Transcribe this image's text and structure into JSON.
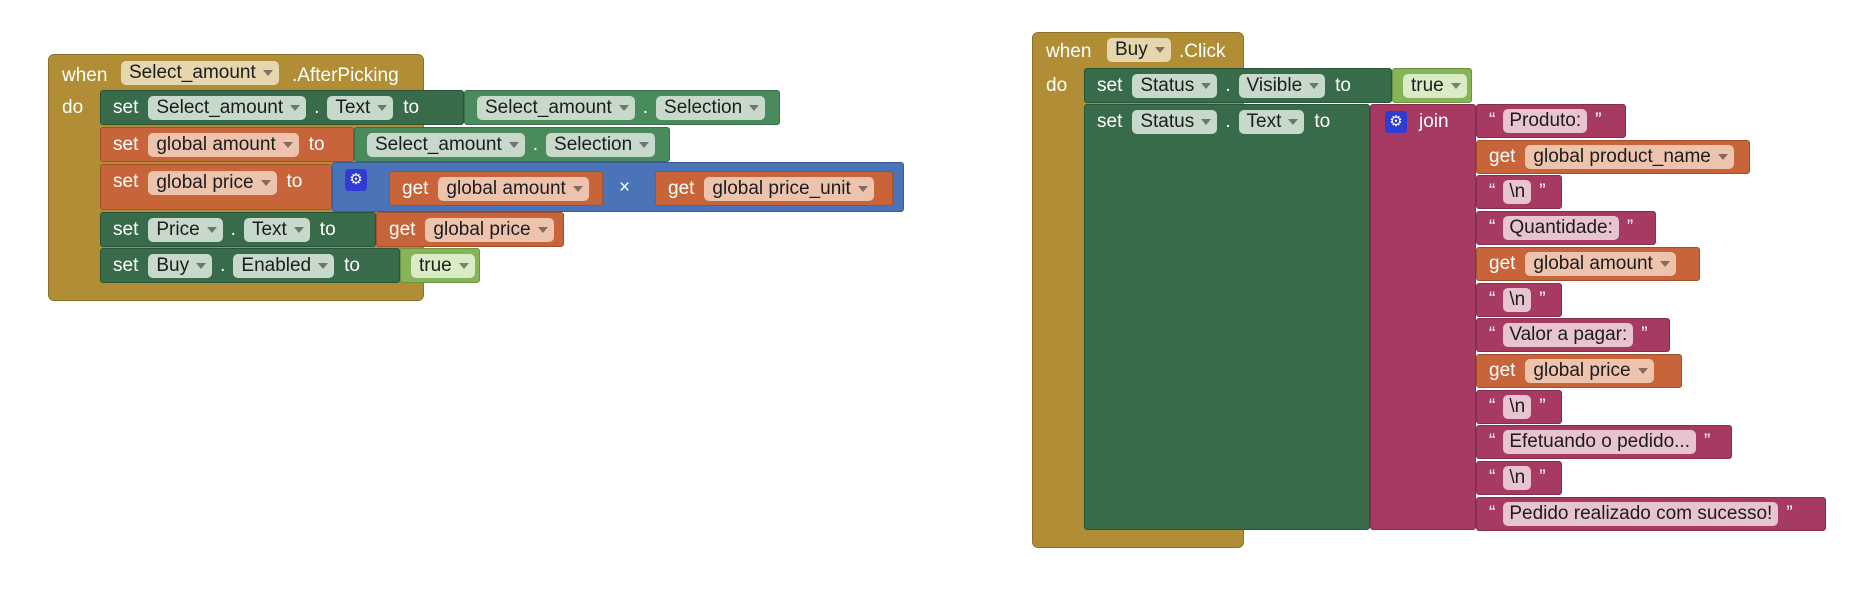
{
  "left": {
    "when": "when",
    "component": "Select_amount",
    "event": ".AfterPicking",
    "do": "do",
    "s1": {
      "set": "set",
      "comp": "Select_amount",
      "dot": ".",
      "prop": "Text",
      "to": "to",
      "src_comp": "Select_amount",
      "src_dot": ".",
      "src_prop": "Selection"
    },
    "s2": {
      "set": "set",
      "var": "global amount",
      "to": "to",
      "src_comp": "Select_amount",
      "src_dot": ".",
      "src_prop": "Selection"
    },
    "s3": {
      "set": "set",
      "var": "global price",
      "to": "to",
      "get1": "get",
      "var1": "global amount",
      "op": "×",
      "get2": "get",
      "var2": "global price_unit"
    },
    "s4": {
      "set": "set",
      "comp": "Price",
      "dot": ".",
      "prop": "Text",
      "to": "to",
      "get": "get",
      "var": "global price"
    },
    "s5": {
      "set": "set",
      "comp": "Buy",
      "dot": ".",
      "prop": "Enabled",
      "to": "to",
      "val": "true"
    }
  },
  "right": {
    "when": "when",
    "component": "Buy",
    "event": ".Click",
    "do": "do",
    "s1": {
      "set": "set",
      "comp": "Status",
      "dot": ".",
      "prop": "Visible",
      "to": "to",
      "val": "true"
    },
    "s2": {
      "set": "set",
      "comp": "Status",
      "dot": ".",
      "prop": "Text",
      "to": "to",
      "join": "join"
    },
    "join_items": [
      {
        "kind": "text",
        "value": "Produto:"
      },
      {
        "kind": "get",
        "label": "get",
        "value": "global product_name"
      },
      {
        "kind": "text",
        "value": "\\n"
      },
      {
        "kind": "text",
        "value": "Quantidade:"
      },
      {
        "kind": "get",
        "label": "get",
        "value": "global amount"
      },
      {
        "kind": "text",
        "value": "\\n"
      },
      {
        "kind": "text",
        "value": "Valor a pagar:"
      },
      {
        "kind": "get",
        "label": "get",
        "value": "global price"
      },
      {
        "kind": "text",
        "value": "\\n"
      },
      {
        "kind": "text",
        "value": "Efetuando o pedido..."
      },
      {
        "kind": "text",
        "value": "\\n"
      },
      {
        "kind": "text",
        "value": "Pedido realizado com sucesso!"
      }
    ],
    "open_quote": "“",
    "close_quote": "”"
  },
  "colors": {
    "event": "#b18e35",
    "component_set": "#376b4a",
    "variable": "#c8643a",
    "math": "#4a73b8",
    "logic": "#87b457",
    "component_get": "#4a8b5d",
    "text": "#a63a63",
    "mutator_gear": "#2f3bd3"
  }
}
